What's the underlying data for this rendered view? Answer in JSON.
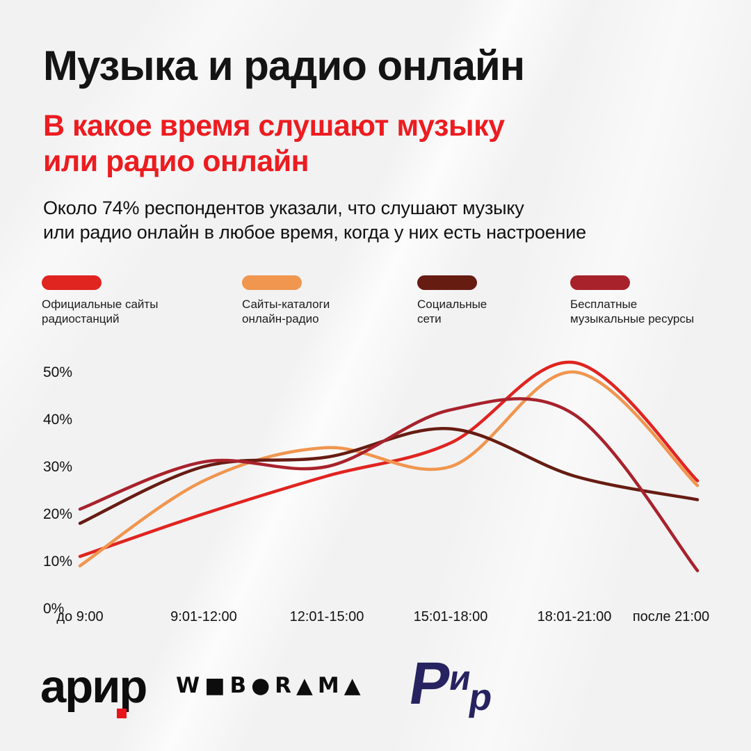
{
  "header": {
    "title": "Музыка и радио онлайн",
    "subtitle_line1": "В какое время слушают музыку",
    "subtitle_line2": "или радио онлайн",
    "description_line1": "Около 74% респондентов указали, что слушают музыку",
    "description_line2": "или радио онлайн в любое время, когда у них есть настроение"
  },
  "colors": {
    "background": "#f2f2f3",
    "title_text": "#141414",
    "accent_red": "#ec1c20",
    "series_red": "#e02420",
    "series_orange": "#f0964f",
    "series_brown": "#671c12",
    "series_crimson": "#a8222c",
    "rir_navy": "#272360"
  },
  "legend": {
    "items": [
      {
        "id": "official-radio-sites",
        "color": "#e02420",
        "line1": "Официальные сайты",
        "line2": "радиостанций"
      },
      {
        "id": "online-radio-catalogs",
        "color": "#f0964f",
        "line1": "Сайты-каталоги",
        "line2": "онлайн-радио"
      },
      {
        "id": "social-networks",
        "color": "#671c12",
        "line1": "Социальные",
        "line2": "сети"
      },
      {
        "id": "free-music-resources",
        "color": "#a8222c",
        "line1": "Бесплатные",
        "line2": "музыкальные ресурсы"
      }
    ]
  },
  "chart_data": {
    "type": "line",
    "categories": [
      "до 9:00",
      "9:01-12:00",
      "12:01-15:00",
      "15:01-18:00",
      "18:01-21:00",
      "после 21:00"
    ],
    "series": [
      {
        "id": "official-radio-sites",
        "name": "Официальные сайты радиостанций",
        "color": "#e02420",
        "values": [
          11,
          20,
          28,
          35,
          52,
          27
        ]
      },
      {
        "id": "online-radio-catalogs",
        "name": "Сайты-каталоги онлайн-радио",
        "color": "#f0964f",
        "values": [
          9,
          27,
          34,
          30,
          50,
          26
        ]
      },
      {
        "id": "social-networks",
        "name": "Социальные сети",
        "color": "#671c12",
        "values": [
          18,
          30,
          32,
          38,
          28,
          23
        ]
      },
      {
        "id": "free-music-resources",
        "name": "Бесплатные музыкальные ресурсы",
        "color": "#a8222c",
        "values": [
          21,
          31,
          30,
          42,
          41,
          8
        ]
      }
    ],
    "y_ticks": [
      "0%",
      "10%",
      "20%",
      "30%",
      "40%",
      "50%"
    ],
    "ylim": [
      0,
      50
    ],
    "grid": false,
    "legend_position": "top",
    "curve": "smooth"
  },
  "footer": {
    "arir_text": "арир",
    "weborama_text": "W■B●R▲M▲",
    "rir_letters": {
      "l0": "Р",
      "l1": "и",
      "l2": "р"
    }
  }
}
